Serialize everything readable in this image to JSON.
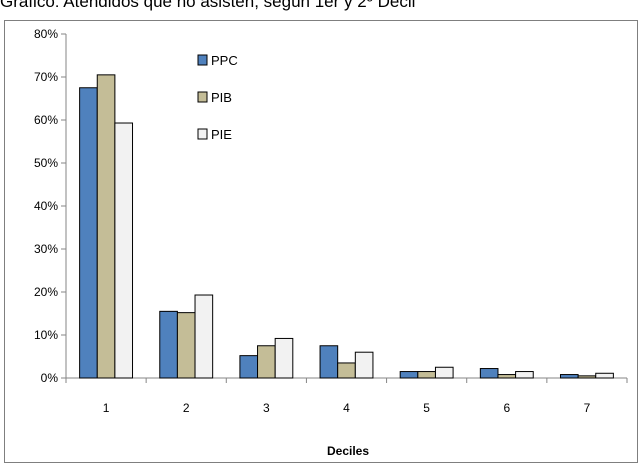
{
  "chart_data": {
    "type": "bar",
    "title": "Gráfico: Atendidos que no asisten, según 1er y 2º Decil",
    "xlabel": "Deciles",
    "ylabel": "",
    "categories": [
      "1",
      "2",
      "3",
      "4",
      "5",
      "6",
      "7"
    ],
    "ylim": [
      0,
      0.8
    ],
    "yticks": [
      "0%",
      "10%",
      "20%",
      "30%",
      "40%",
      "50%",
      "60%",
      "70%",
      "80%"
    ],
    "grid": false,
    "legend_position": "top-center",
    "series": [
      {
        "name": "PPC",
        "color": "#4f81bd",
        "values": [
          0.675,
          0.155,
          0.052,
          0.075,
          0.015,
          0.022,
          0.008
        ]
      },
      {
        "name": "PIB",
        "color": "#c4bd97",
        "values": [
          0.705,
          0.152,
          0.075,
          0.035,
          0.015,
          0.008,
          0.005
        ]
      },
      {
        "name": "PIE",
        "color": "#f2f2f2",
        "values": [
          0.593,
          0.193,
          0.092,
          0.06,
          0.025,
          0.015,
          0.011
        ]
      }
    ]
  }
}
